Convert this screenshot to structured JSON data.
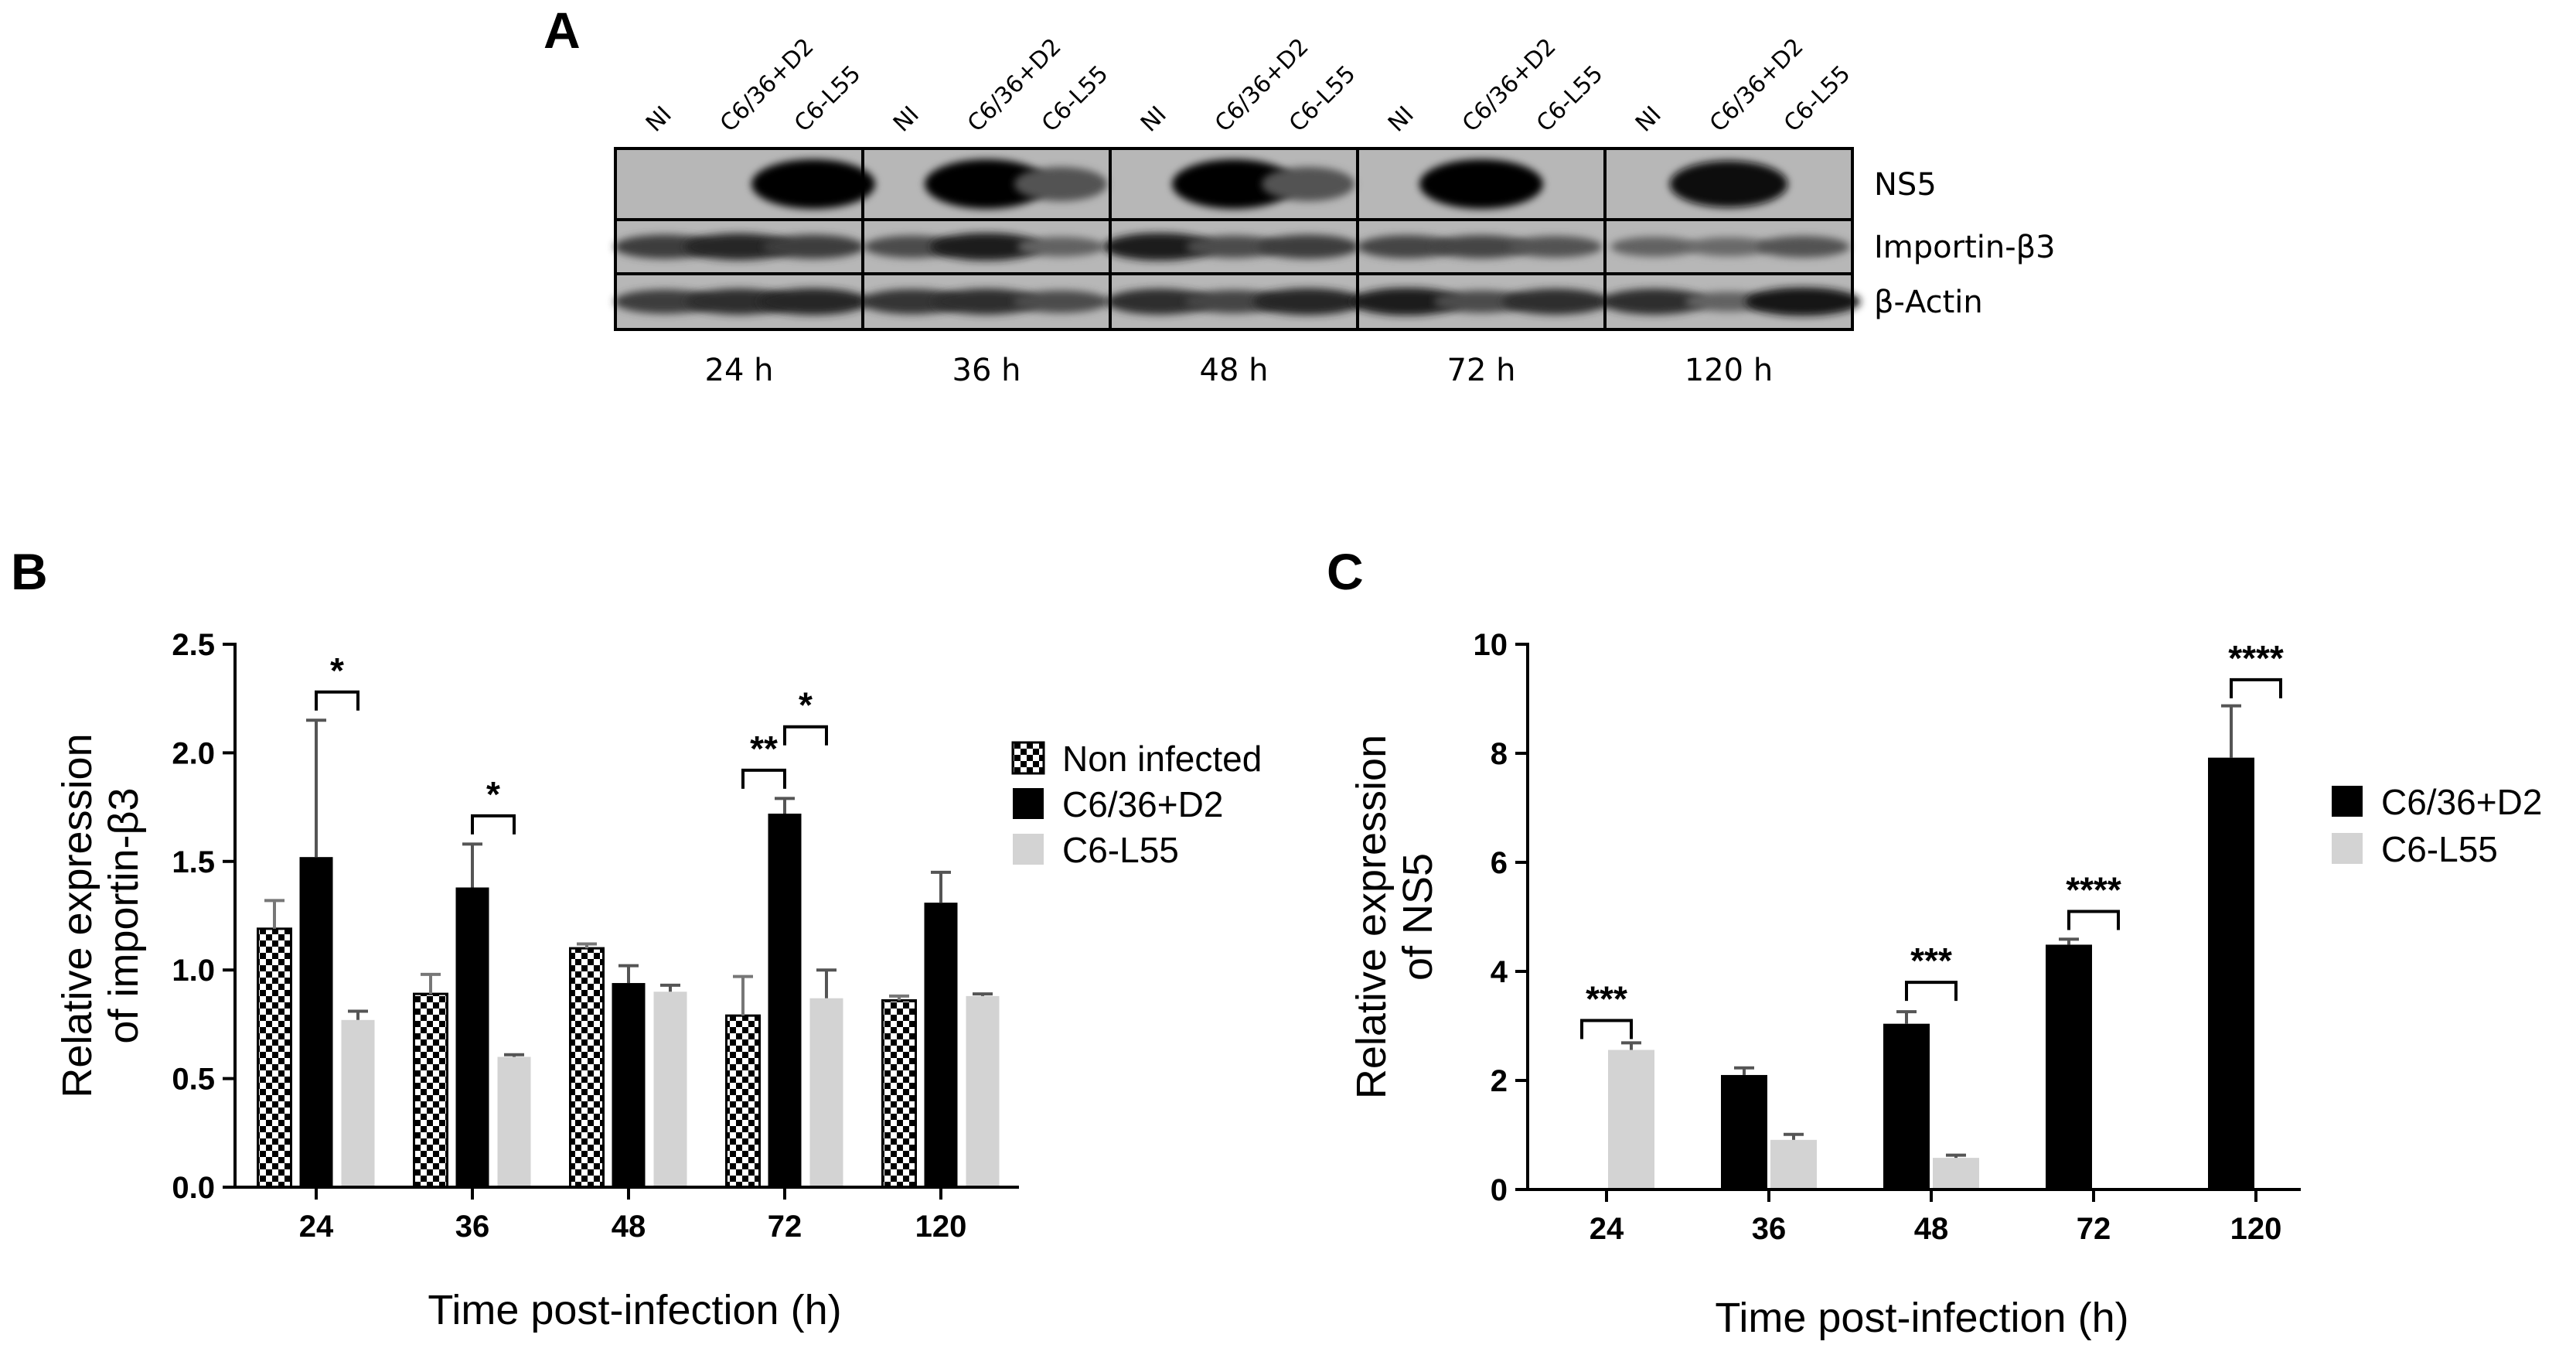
{
  "panel_a": {
    "letter": "A",
    "lane_labels": [
      "NI",
      "C6/36+D2",
      "C6-L55"
    ],
    "timepoints": [
      "24 h",
      "36 h",
      "48 h",
      "72 h",
      "120 h"
    ],
    "row_labels": [
      "NS5",
      "Importin-β3",
      "β-Actin"
    ],
    "band_intensities": {
      "NS5": [
        [
          0,
          0,
          1.0
        ],
        [
          0,
          1.0,
          0.45
        ],
        [
          0,
          1.0,
          0.45
        ],
        [
          0,
          1.0,
          0
        ],
        [
          0,
          0.9,
          0
        ]
      ],
      "Importin-β3": [
        [
          0.6,
          0.75,
          0.6
        ],
        [
          0.5,
          0.8,
          0.35
        ],
        [
          0.8,
          0.5,
          0.6
        ],
        [
          0.55,
          0.55,
          0.45
        ],
        [
          0.35,
          0.3,
          0.45
        ]
      ],
      "β-Actin": [
        [
          0.6,
          0.7,
          0.75
        ],
        [
          0.65,
          0.7,
          0.5
        ],
        [
          0.7,
          0.55,
          0.75
        ],
        [
          0.8,
          0.5,
          0.7
        ],
        [
          0.7,
          0.35,
          0.85
        ]
      ]
    }
  },
  "chart_data": [
    {
      "panel": "B",
      "type": "bar",
      "categories": [
        "24",
        "36",
        "48",
        "72",
        "120"
      ],
      "series": [
        {
          "name": "Non infected",
          "values": [
            1.19,
            0.89,
            1.1,
            0.79,
            0.86
          ],
          "errors": [
            0.13,
            0.09,
            0.02,
            0.18,
            0.02
          ],
          "color": "#888888",
          "pattern": "checkerboard"
        },
        {
          "name": "C6/36+D2",
          "values": [
            1.52,
            1.38,
            0.94,
            1.72,
            1.31
          ],
          "errors": [
            0.63,
            0.2,
            0.08,
            0.07,
            0.14
          ],
          "color": "#000000"
        },
        {
          "name": "C6-L55",
          "values": [
            0.77,
            0.6,
            0.9,
            0.87,
            0.88
          ],
          "errors": [
            0.04,
            0.01,
            0.03,
            0.13,
            0.01
          ],
          "color": "#d3d3d3"
        }
      ],
      "ylim": [
        0,
        2.5
      ],
      "yticks": [
        "0.0",
        "0.5",
        "1.0",
        "1.5",
        "2.0",
        "2.5"
      ],
      "ylabel_lines": [
        "Relative expression",
        "of importin-β3"
      ],
      "xlabel": "Time post-infection (h)",
      "significance": [
        {
          "category": "24",
          "from": 1,
          "to": 2,
          "label": "*",
          "y": 2.28
        },
        {
          "category": "36",
          "from": 1,
          "to": 2,
          "label": "*",
          "y": 1.71
        },
        {
          "category": "72",
          "from": 0,
          "to": 1,
          "label": "**",
          "y": 1.92
        },
        {
          "category": "72",
          "from": 1,
          "to": 2,
          "label": "*",
          "y": 2.12
        }
      ],
      "legend": "right"
    },
    {
      "panel": "C",
      "type": "bar",
      "categories": [
        "24",
        "36",
        "48",
        "72",
        "120"
      ],
      "series": [
        {
          "name": "C6/36+D2",
          "values": [
            0,
            2.1,
            3.04,
            4.49,
            7.92
          ],
          "errors": [
            0,
            0.13,
            0.22,
            0.1,
            0.95
          ],
          "color": "#000000"
        },
        {
          "name": "C6-L55",
          "values": [
            2.56,
            0.91,
            0.58,
            0,
            0
          ],
          "errors": [
            0.13,
            0.1,
            0.05,
            0,
            0
          ],
          "color": "#d3d3d3"
        }
      ],
      "ylim": [
        0,
        10
      ],
      "yticks": [
        "0",
        "2",
        "4",
        "6",
        "8",
        "10"
      ],
      "ylabel_lines": [
        "Relative expression",
        "of NS5"
      ],
      "xlabel": "Time post-infection (h)",
      "significance": [
        {
          "category": "24",
          "from": 0,
          "to": 1,
          "label": "***",
          "y": 3.1
        },
        {
          "category": "48",
          "from": 0,
          "to": 1,
          "label": "***",
          "y": 3.8
        },
        {
          "category": "72",
          "from": 0,
          "to": 1,
          "label": "****",
          "y": 5.1
        },
        {
          "category": "120",
          "from": 0,
          "to": 1,
          "label": "****",
          "y": 9.35
        }
      ],
      "legend": "right"
    }
  ]
}
